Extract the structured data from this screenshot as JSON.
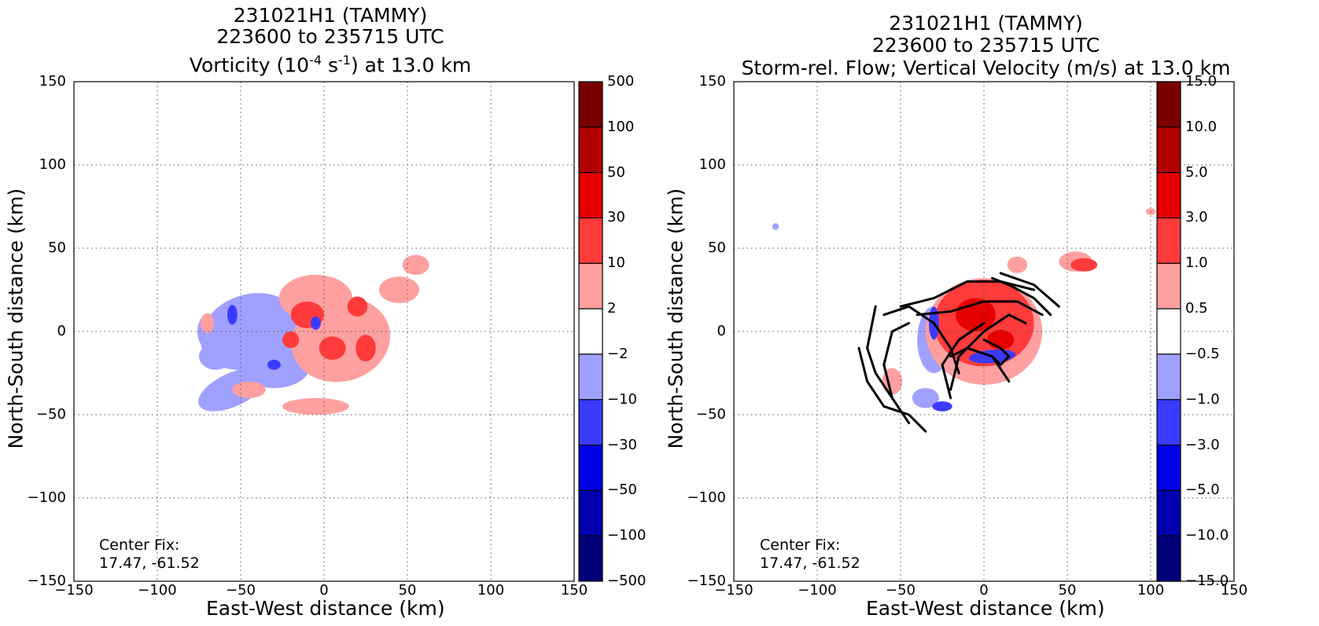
{
  "chart_data": [
    {
      "type": "heatmap",
      "title_lines": [
        "231021H1 (TAMMY)",
        "223600 to 235715 UTC"
      ],
      "title_line3_parts": [
        "Vorticity (10",
        "-4",
        " s",
        "-1",
        ") at 13.0 km"
      ],
      "xlabel": "East-West distance (km)",
      "ylabel": "North-South distance (km)",
      "xlim": [
        -150,
        150
      ],
      "ylim": [
        -150,
        150
      ],
      "x_ticks": [
        "−150",
        "−100",
        "−50",
        "0",
        "50",
        "100",
        "150"
      ],
      "y_ticks": [
        "150",
        "100",
        "50",
        "0",
        "−50",
        "−100",
        "−150"
      ],
      "grid": true,
      "colorbar": {
        "labels": [
          "500",
          "100",
          "50",
          "30",
          "10",
          "2",
          "−2",
          "−10",
          "−30",
          "−50",
          "−100",
          "−500"
        ],
        "colors": [
          "#7a0000",
          "#b00000",
          "#e60000",
          "#ff3b3b",
          "#ffa0a0",
          "#ffffff",
          "#a0a0ff",
          "#3b3bff",
          "#0000e6",
          "#0000b0",
          "#00007a"
        ]
      },
      "annotation": [
        "Center Fix:",
        "17.47, -61.52"
      ],
      "data_summary": "Positive vorticity (2 to 30) concentrated near center (x -20..30, y -25..35); negative vorticity (-2 to -10) surrounding to west and south (x -75..-10, y -55..25)"
    },
    {
      "type": "heatmap",
      "title_lines": [
        "231021H1 (TAMMY)",
        "223600 to 235715 UTC",
        "Storm-rel. Flow; Vertical Velocity (m/s) at 13.0 km"
      ],
      "xlabel": "East-West distance (km)",
      "ylabel": "North-South distance (km)",
      "xlim": [
        -150,
        150
      ],
      "ylim": [
        -150,
        150
      ],
      "x_ticks": [
        "−150",
        "−100",
        "−50",
        "0",
        "50",
        "100",
        "150"
      ],
      "y_ticks": [
        "150",
        "100",
        "50",
        "0",
        "−50",
        "−100",
        "−150"
      ],
      "grid": true,
      "colorbar": {
        "labels": [
          "15.0",
          "10.0",
          "5.0",
          "3.0",
          "1.0",
          "0.5",
          "−0.5",
          "−1.0",
          "−3.0",
          "−5.0",
          "−10.0",
          "−15.0"
        ],
        "colors": [
          "#7a0000",
          "#b00000",
          "#e60000",
          "#ff3b3b",
          "#ffa0a0",
          "#ffffff",
          "#a0a0ff",
          "#3b3bff",
          "#0000e6",
          "#0000b0",
          "#00007a"
        ]
      },
      "annotation": [
        "Center Fix:",
        "17.47, -61.52"
      ],
      "data_summary": "Strong upward motion (1 to 5 m/s) in ring around center (x -30..35, y -35..35); weak downdrafts to west and southwest; storm-relative streamlines show cyclonic flow"
    }
  ]
}
